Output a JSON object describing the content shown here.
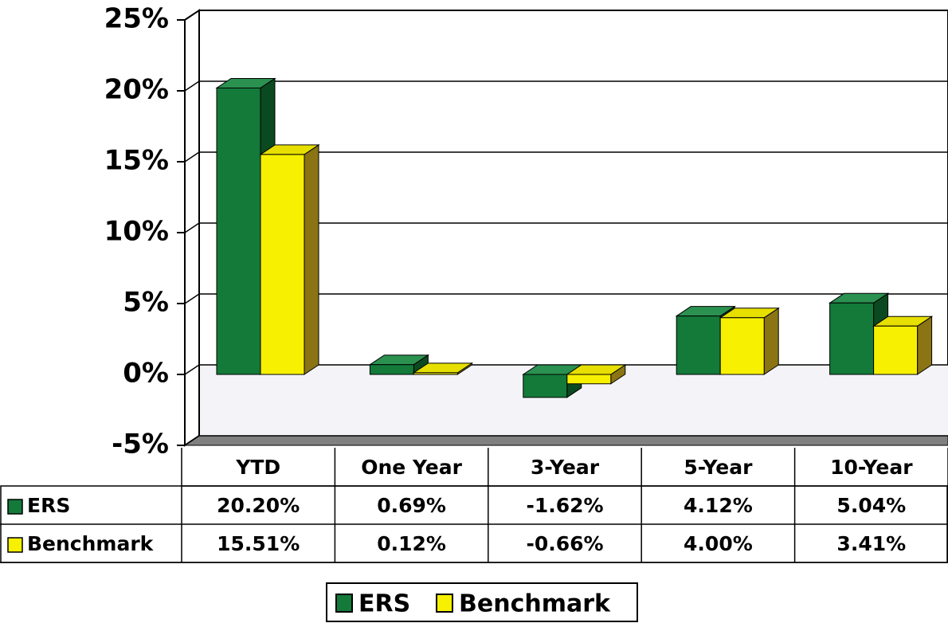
{
  "chart_data": {
    "type": "bar3d",
    "categories": [
      "YTD",
      "One Year",
      "3-Year",
      "5-Year",
      "10-Year"
    ],
    "series": [
      {
        "name": "ERS",
        "color": "#137a3a",
        "values": [
          20.2,
          0.69,
          -1.62,
          4.12,
          5.04
        ],
        "value_labels": [
          "20.20%",
          "0.69%",
          "-1.62%",
          "4.12%",
          "5.04%"
        ]
      },
      {
        "name": "Benchmark",
        "color": "#f7f000",
        "values": [
          15.51,
          0.12,
          -0.66,
          4.0,
          3.41
        ],
        "value_labels": [
          "15.51%",
          "0.12%",
          "-0.66%",
          "4.00%",
          "3.41%"
        ]
      }
    ],
    "ylim": [
      -5,
      25
    ],
    "yticks": [
      {
        "value": -5,
        "label": "-5%"
      },
      {
        "value": 0,
        "label": "0%"
      },
      {
        "value": 5,
        "label": "5%"
      },
      {
        "value": 10,
        "label": "10%"
      },
      {
        "value": 15,
        "label": "15%"
      },
      {
        "value": 20,
        "label": "20%"
      },
      {
        "value": 25,
        "label": "25%"
      }
    ],
    "grid": true,
    "legend": "bottom"
  }
}
